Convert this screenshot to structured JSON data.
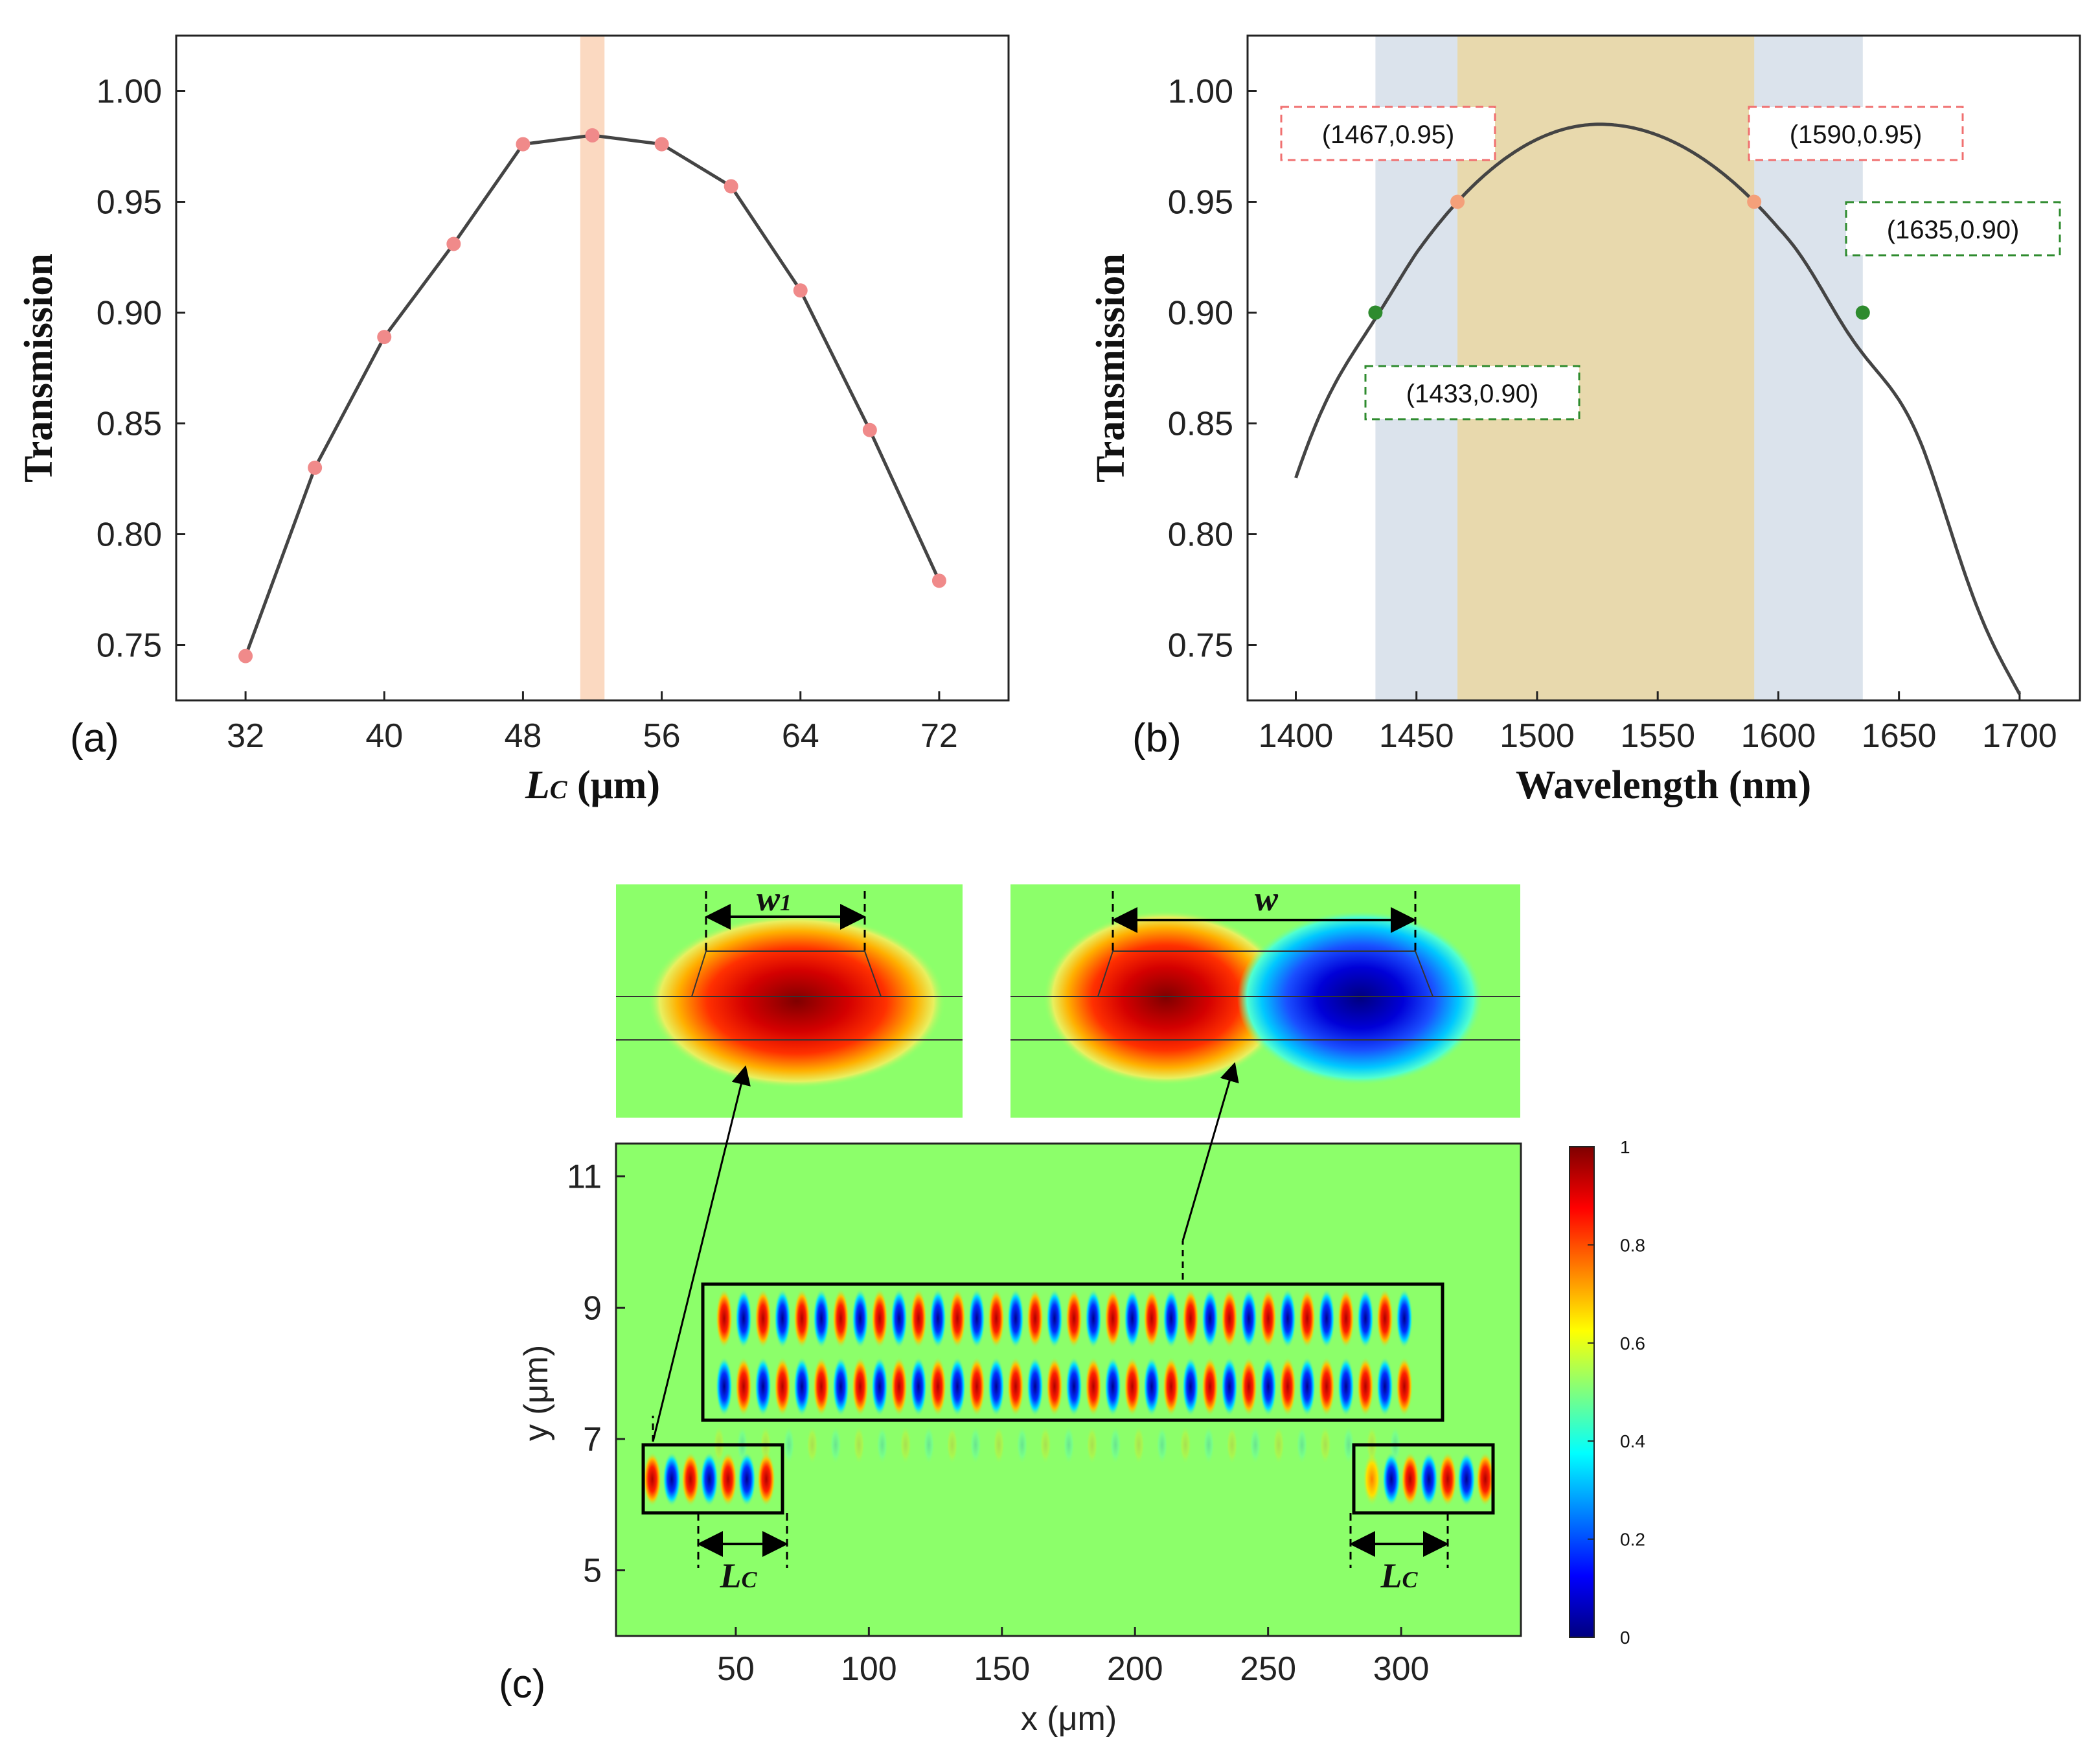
{
  "chart_data": [
    {
      "id": "a",
      "type": "line",
      "panel_label": "(a)",
      "xlabel_main": "L",
      "xlabel_sub": "C",
      "xlabel_unit": " (μm)",
      "ylabel": "Transmission",
      "xlim": [
        28,
        76
      ],
      "ylim": [
        0.725,
        1.025
      ],
      "xticks": [
        "32",
        "40",
        "48",
        "56",
        "64",
        "72"
      ],
      "yticks": [
        "0.75",
        "0.80",
        "0.85",
        "0.90",
        "0.95",
        "1.00"
      ],
      "x": [
        32,
        36,
        40,
        44,
        48,
        52,
        56,
        60,
        64,
        68,
        72
      ],
      "y": [
        0.745,
        0.83,
        0.889,
        0.931,
        0.976,
        0.98,
        0.976,
        0.957,
        0.91,
        0.847,
        0.779
      ],
      "highlight_x": [
        51.3,
        52.7
      ],
      "line_color": "#444444",
      "marker_color": "#f08a8a",
      "highlight_color": "#f9c9a6"
    },
    {
      "id": "b",
      "type": "line",
      "panel_label": "(b)",
      "xlabel": "Wavelength (nm)",
      "ylabel": "Transmission",
      "xlim": [
        1380,
        1725
      ],
      "ylim": [
        0.725,
        1.025
      ],
      "xticks": [
        "1400",
        "1450",
        "1500",
        "1550",
        "1600",
        "1650",
        "1700"
      ],
      "yticks": [
        "0.75",
        "0.80",
        "0.85",
        "0.90",
        "0.95",
        "1.00"
      ],
      "curve_peak": {
        "x": 1526,
        "y": 0.985
      },
      "curve_range": [
        1400,
        1700
      ],
      "bands": [
        {
          "from": 1433,
          "to": 1635,
          "color": "#dbe3ec"
        },
        {
          "from": 1467,
          "to": 1590,
          "color": "#e8d9ad"
        }
      ],
      "points": [
        {
          "x": 1467,
          "y": 0.95,
          "label": "(1467,0.95)",
          "color": "#f4a07a",
          "box_color": "#f07070"
        },
        {
          "x": 1590,
          "y": 0.95,
          "label": "(1590,0.95)",
          "color": "#f4a07a",
          "box_color": "#f07070"
        },
        {
          "x": 1433,
          "y": 0.9,
          "label": "(1433,0.90)",
          "color": "#2e8b2e",
          "box_color": "#2e8b2e"
        },
        {
          "x": 1635,
          "y": 0.9,
          "label": "(1635,0.90)",
          "color": "#2e8b2e",
          "box_color": "#2e8b2e"
        }
      ]
    },
    {
      "id": "c",
      "type": "heatmap",
      "panel_label": "(c)",
      "xlabel": "x (μm)",
      "ylabel": "y (μm)",
      "xlim": [
        5,
        345
      ],
      "ylim": [
        4,
        11.5
      ],
      "xticks": [
        "50",
        "100",
        "150",
        "200",
        "250",
        "300"
      ],
      "yticks": [
        "5",
        "7",
        "9",
        "11"
      ],
      "colorbar_ticks": [
        "0",
        "0.2",
        "0.4",
        "0.6",
        "0.8",
        "1"
      ],
      "annotations": {
        "w1": "w",
        "w1_sub": "1",
        "w": "w",
        "lc_left": "L",
        "lc_right": "L",
        "lc_sub": "C"
      }
    }
  ]
}
